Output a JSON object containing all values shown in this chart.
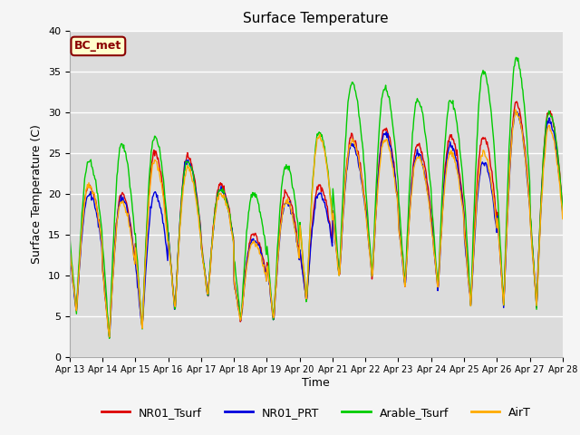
{
  "title": "Surface Temperature",
  "ylabel": "Surface Temperature (C)",
  "xlabel": "Time",
  "ylim": [
    0,
    40
  ],
  "plot_bg_color": "#dcdcdc",
  "fig_bg_color": "#f5f5f5",
  "annotation": "BC_met",
  "annotation_bg": "#ffffcc",
  "annotation_edge": "#8B0000",
  "annotation_color": "#8B0000",
  "series_colors": {
    "NR01_Tsurf": "#dd0000",
    "NR01_PRT": "#0000dd",
    "Arable_Tsurf": "#00cc00",
    "AirT": "#ffaa00"
  },
  "grid_color": "#ffffff",
  "xtick_labels": [
    "Apr 13",
    "Apr 14",
    "Apr 15",
    "Apr 16",
    "Apr 17",
    "Apr 18",
    "Apr 19",
    "Apr 20",
    "Apr 21",
    "Apr 22",
    "Apr 23",
    "Apr 24",
    "Apr 25",
    "Apr 26",
    "Apr 27",
    "Apr 28"
  ],
  "ytick_labels": [
    "0",
    "5",
    "10",
    "15",
    "20",
    "25",
    "30",
    "35",
    "40"
  ],
  "ytick_positions": [
    0,
    5,
    10,
    15,
    20,
    25,
    30,
    35,
    40
  ],
  "min_temps": [
    5.5,
    2.2,
    3.2,
    5.5,
    7.2,
    4.2,
    4.2,
    6.5,
    9.5,
    9.5,
    8.5,
    8.0,
    6.2,
    6.2,
    6.2
  ],
  "max_temps_red": [
    21,
    20,
    25,
    24.5,
    21,
    15,
    20,
    21,
    27,
    28,
    26,
    27,
    27,
    31,
    30
  ],
  "max_temps_blue": [
    20,
    19.5,
    20,
    24,
    20.5,
    14.5,
    19,
    20,
    26,
    27.5,
    25,
    26,
    24,
    30,
    29
  ],
  "max_temps_green": [
    24,
    26,
    27,
    24,
    20.5,
    20,
    23.5,
    27.5,
    33.5,
    33,
    31.5,
    31.5,
    35,
    36.5,
    30
  ],
  "max_temps_orange": [
    21,
    19,
    24,
    23,
    20,
    14,
    19,
    27,
    26.5,
    26.5,
    24.5,
    25,
    25,
    30,
    28
  ]
}
